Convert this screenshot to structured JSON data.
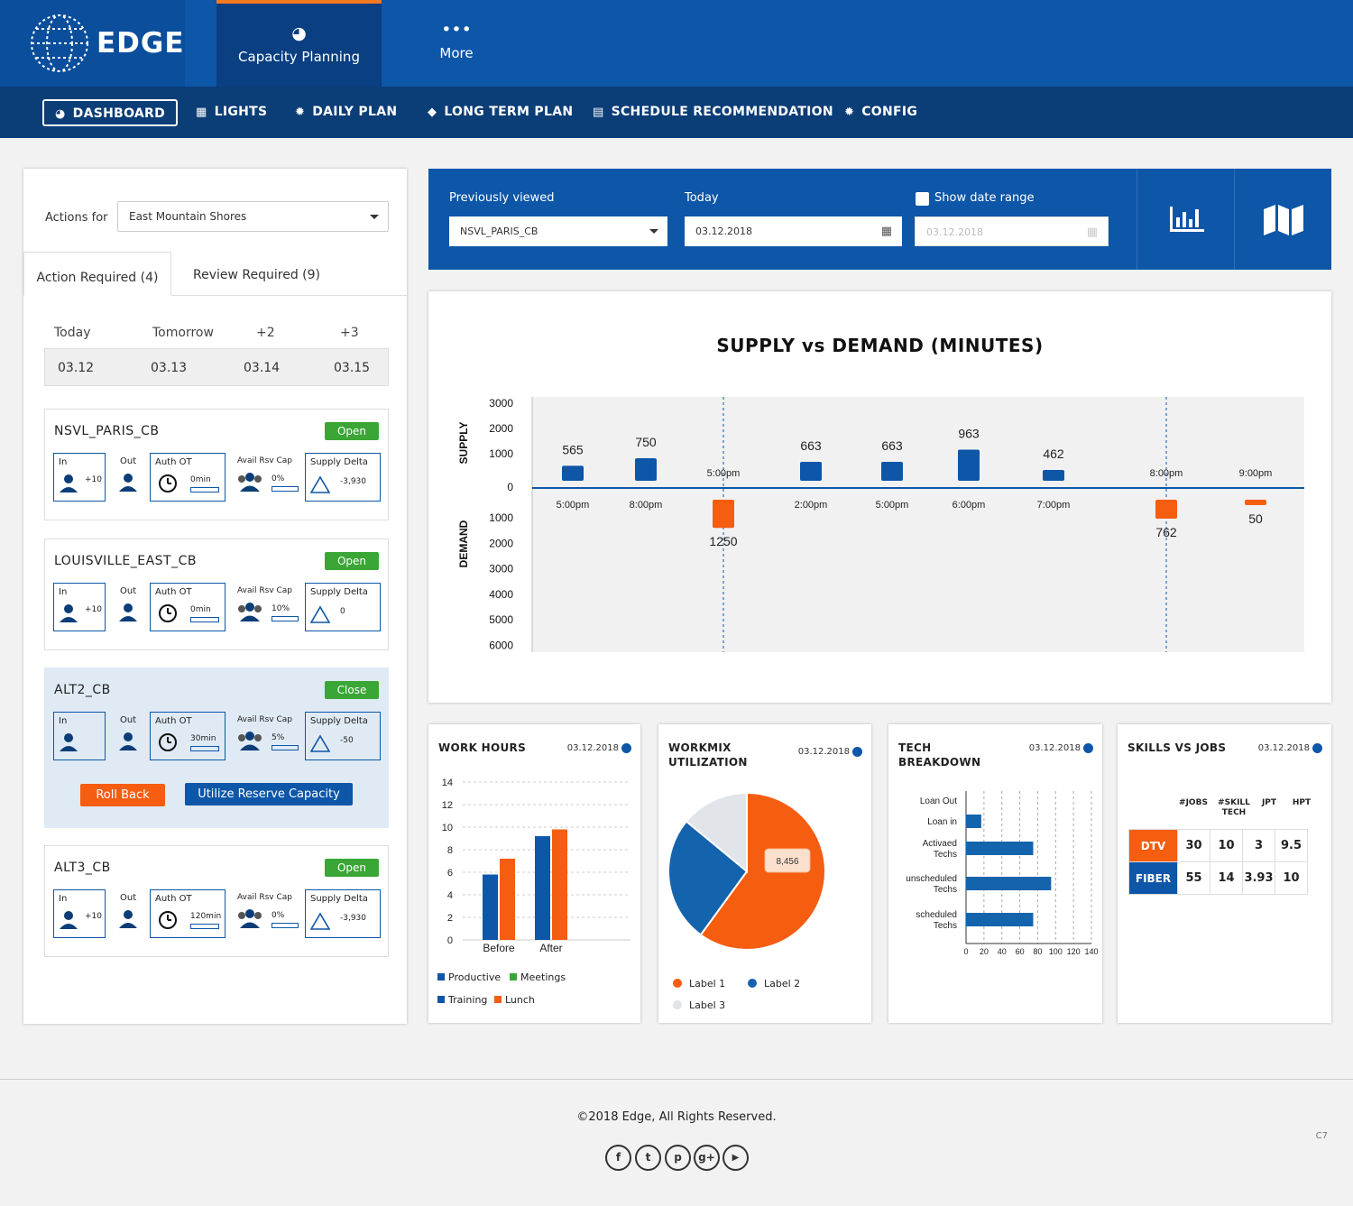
{
  "brand": {
    "name": "EDGE"
  },
  "topnav": {
    "capacity": {
      "label": "Capacity Planning",
      "icon": "gauge-icon"
    },
    "more": {
      "label": "More",
      "icon": "dots-icon"
    }
  },
  "subnav": [
    {
      "label": "DASHBOARD",
      "icon": "gauge-icon"
    },
    {
      "label": "LIGHTS",
      "icon": "building-icon"
    },
    {
      "label": "DAILY PLAN",
      "icon": "gear-icon"
    },
    {
      "label": "LONG TERM PLAN",
      "icon": "tags-icon"
    },
    {
      "label": "SCHEDULE RECOMMENDATION",
      "icon": "calendar-icon"
    },
    {
      "label": "CONFIG",
      "icon": "gear-icon"
    }
  ],
  "left": {
    "actions_for": "Actions for",
    "location": "East Mountain Shores",
    "tabs": {
      "action": "Action Required (4)",
      "review": "Review Required (9)"
    },
    "days": [
      "Today",
      "Tomorrow",
      "+2",
      "+3"
    ],
    "dates": [
      "03.12",
      "03.13",
      "03.14",
      "03.15"
    ],
    "labels": {
      "in": "In",
      "out": "Out",
      "auth": "Auth OT",
      "avail": "Avail Rsv Cap",
      "delta": "Supply Delta"
    },
    "cards": [
      {
        "title": "NSVL_PARIS_CB",
        "status": "Open",
        "in": "+10",
        "auth": "0min",
        "avail": "0%",
        "delta": "-3,930"
      },
      {
        "title": "LOUISVILLE_EAST_CB",
        "status": "Open",
        "in": "+10",
        "auth": "0min",
        "avail": "10%",
        "delta": "0"
      },
      {
        "title": "ALT2_CB",
        "status": "Close",
        "in": "",
        "auth": "30min",
        "avail": "5%",
        "delta": "-50"
      },
      {
        "title": "ALT3_CB",
        "status": "Open",
        "in": "+10",
        "auth": "120min",
        "avail": "0%",
        "delta": "-3,930"
      }
    ],
    "rollback": "Roll Back",
    "utilize": "Utilize Reserve Capacity"
  },
  "filters": {
    "prev_label": "Previously viewed",
    "prev_value": "NSVL_PARIS_CB",
    "today_label": "Today",
    "today_value": "03.12.2018",
    "range_label": "Show date range",
    "range_value": "03.12.2018",
    "icons": [
      "bar-chart-icon",
      "map-icon"
    ]
  },
  "chart_data": [
    {
      "type": "bar",
      "title": "SUPPLY vs DEMAND (MINUTES)",
      "supply_axis_label": "SUPPLY",
      "demand_axis_label": "DEMAND",
      "supply_ticks": [
        3000,
        2000,
        1000,
        0
      ],
      "demand_ticks": [
        1000,
        2000,
        3000,
        4000,
        5000,
        6000
      ],
      "supply": [
        {
          "time": "5:00pm",
          "value": 565
        },
        {
          "time": "8:00pm",
          "value": 750
        },
        {
          "time": "2:00pm",
          "value": 663
        },
        {
          "time": "5:00pm",
          "value": 663
        },
        {
          "time": "6:00pm",
          "value": 963
        },
        {
          "time": "7:00pm",
          "value": 462
        }
      ],
      "demand": [
        {
          "time": "5:00pm",
          "value": 1250
        },
        {
          "time": "8:00pm",
          "value": 762
        },
        {
          "time": "9:00pm",
          "value": 50
        }
      ],
      "colors": {
        "supply": "#0d56a8",
        "demand": "#f55d10"
      }
    },
    {
      "type": "bar",
      "title": "WORK HOURS",
      "date": "03.12.2018",
      "categories": [
        "Before",
        "After"
      ],
      "ylim": [
        0,
        14
      ],
      "yticks": [
        0,
        2,
        4,
        6,
        8,
        10,
        12,
        14
      ],
      "series": [
        {
          "name": "Productive",
          "values": [
            5.8,
            9.2
          ],
          "color": "#0d56a8"
        },
        {
          "name": "Lunch",
          "values": [
            7.2,
            9.8
          ],
          "color": "#f55d10"
        }
      ],
      "legend": [
        {
          "name": "Productive",
          "color": "#0d56a8"
        },
        {
          "name": "Meetings",
          "color": "#3aa635"
        },
        {
          "name": "Training",
          "color": "#0d56a8"
        },
        {
          "name": "Lunch",
          "color": "#f55d10"
        }
      ]
    },
    {
      "type": "pie",
      "title": "WORKMIX UTILIZATION",
      "date": "03.12.2018",
      "slices": [
        {
          "name": "Label 1",
          "value": 60,
          "color": "#f55d10"
        },
        {
          "name": "Label 2",
          "value": 26,
          "color": "#1463ad"
        },
        {
          "name": "Label 3",
          "value": 14,
          "color": "#e1e4e8"
        }
      ],
      "callout": "8,456"
    },
    {
      "type": "bar",
      "orientation": "horizontal",
      "title": "TECH BREAKDOWN",
      "date": "03.12.2018",
      "categories": [
        "Loan Out",
        "Loan in",
        "Activaed Techs",
        "unscheduled Techs",
        "scheduled Techs"
      ],
      "values": [
        0,
        17,
        75,
        95,
        75
      ],
      "xticks": [
        0,
        20,
        40,
        60,
        80,
        100,
        120,
        140
      ],
      "xlim": [
        0,
        140
      ]
    }
  ],
  "skills": {
    "title": "SKILLS VS JOBS",
    "date": "03.12.2018",
    "headers": [
      "#JOBS",
      "#SKILL TECH",
      "JPT",
      "HPT"
    ],
    "rows": [
      {
        "label": "DTV",
        "values": [
          "30",
          "10",
          "3",
          "9.5"
        ],
        "color": "#f55d10"
      },
      {
        "label": "FIBER",
        "values": [
          "55",
          "14",
          "3.93",
          "10"
        ],
        "color": "#0d56a8"
      }
    ]
  },
  "footer": {
    "copyright": "©2018 Edge, All Rights Reserved.",
    "code": "C7",
    "social": [
      {
        "icon": "facebook-icon",
        "glyph": "f"
      },
      {
        "icon": "twitter-icon",
        "glyph": "t"
      },
      {
        "icon": "pinterest-icon",
        "glyph": "p"
      },
      {
        "icon": "google-plus-icon",
        "glyph": "g+"
      },
      {
        "icon": "youtube-icon",
        "glyph": "▶"
      }
    ]
  }
}
